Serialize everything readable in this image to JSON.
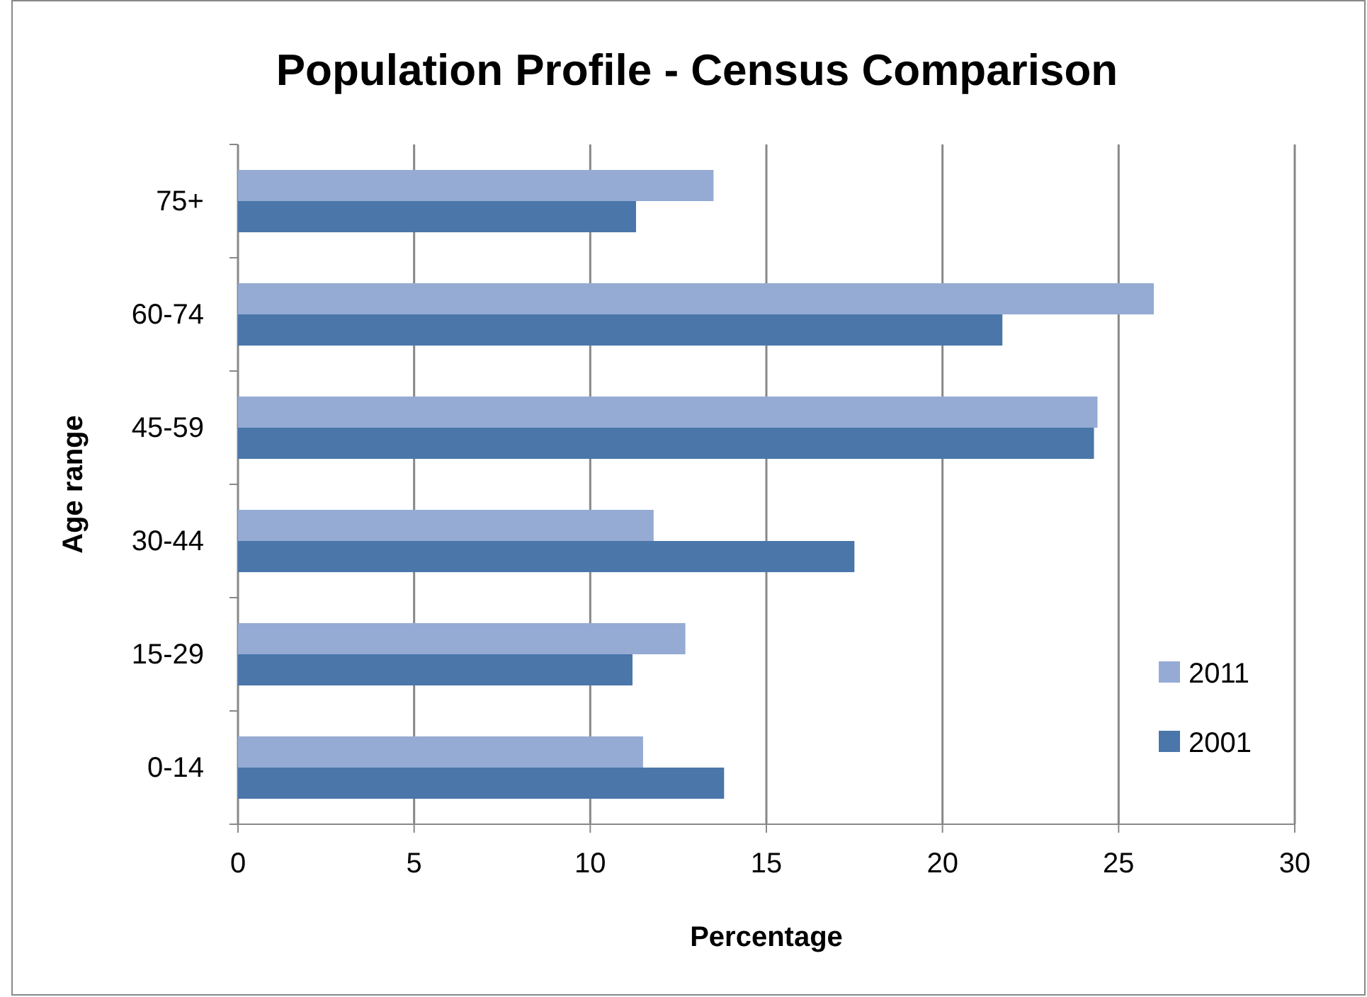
{
  "chart_data": {
    "type": "bar",
    "orientation": "horizontal",
    "title": "Population Profile - Census Comparison",
    "xlabel": "Percentage",
    "ylabel": "Age range",
    "categories": [
      "75+",
      "60-74",
      "45-59",
      "30-44",
      "15-29",
      "0-14"
    ],
    "series": [
      {
        "name": "2011",
        "color": "#95abd4",
        "values": [
          13.5,
          26.0,
          24.4,
          11.8,
          12.7,
          11.5
        ]
      },
      {
        "name": "2001",
        "color": "#4a76aa",
        "values": [
          11.3,
          21.7,
          24.3,
          17.5,
          11.2,
          13.8
        ]
      }
    ],
    "xlim": [
      0,
      30
    ],
    "xticks": [
      0,
      5,
      10,
      15,
      20,
      25,
      30
    ],
    "grid": "x",
    "legend": "right"
  }
}
